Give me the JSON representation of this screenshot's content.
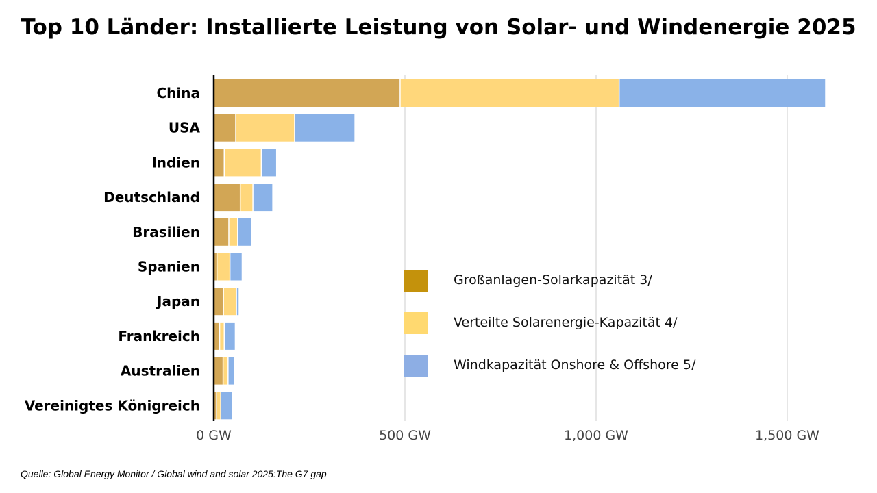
{
  "chart_data": {
    "type": "bar",
    "orientation": "horizontal",
    "stacked": true,
    "title": "Top 10 Länder: Installierte Leistung von Solar- und Windenergie 2025",
    "xlabel": "",
    "ylabel": "",
    "xlim": [
      0,
      1650
    ],
    "xticks": [
      0,
      500,
      1000,
      1500
    ],
    "xtick_labels": [
      "0 GW",
      "500 GW",
      "1,000 GW",
      "1,500 GW"
    ],
    "grid": true,
    "legend_position": "center-right",
    "categories": [
      "China",
      "USA",
      "Indien",
      "Deutschland",
      "Brasilien",
      "Spanien",
      "Japan",
      "Frankreich",
      "Australien",
      "Vereinigtes Königreich"
    ],
    "series": [
      {
        "name": " Großanlagen-Solarkapazität 3/",
        "color": "#D2A655",
        "legend_color": "#C4920C",
        "values": [
          486,
          56,
          26,
          68,
          38,
          7,
          24,
          14,
          23,
          6
        ]
      },
      {
        "name": "Verteilte Solarenergie-Kapazität 4/",
        "color": "#FFD77B",
        "legend_color": "#FFD970",
        "values": [
          573,
          154,
          97,
          33,
          23,
          34,
          34,
          12,
          13,
          11
        ]
      },
      {
        "name": "Windkapazität Onshore & Offshore 5/",
        "color": "#8AB2E8",
        "legend_color": "#8DAEE4",
        "values": [
          540,
          158,
          40,
          52,
          37,
          32,
          7,
          29,
          17,
          30
        ]
      }
    ]
  },
  "source": "Quelle: Global Energy Monitor / Global wind and solar 2025:The G7 gap"
}
